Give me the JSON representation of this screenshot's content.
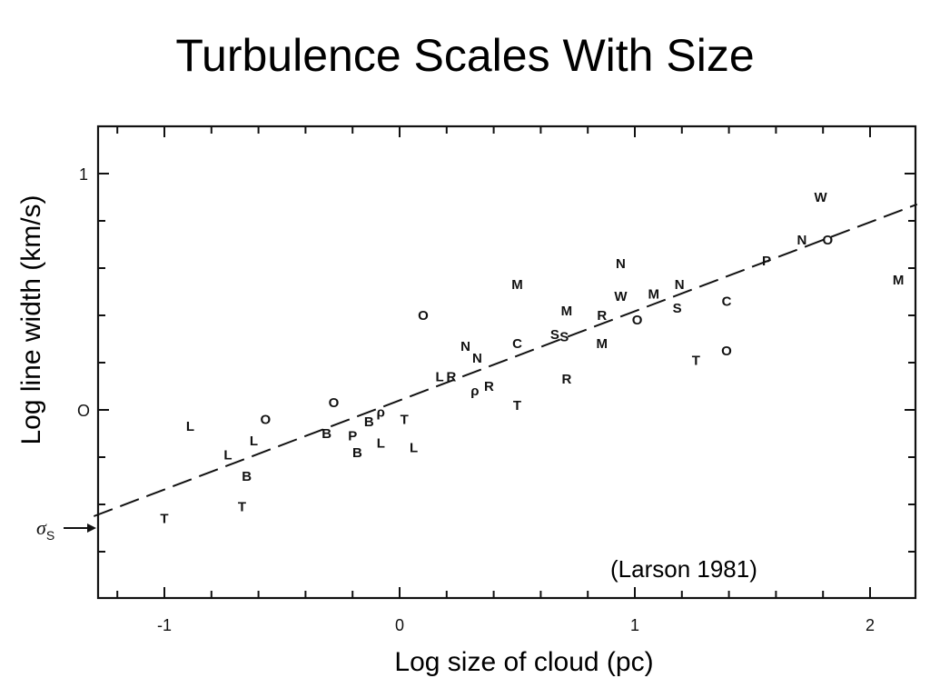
{
  "title": "Turbulence Scales With Size",
  "citation": "(Larson 1981)",
  "sigma_label": "σS",
  "chart_data": {
    "type": "scatter",
    "title": "Turbulence Scales With Size",
    "xlabel": "Log size of cloud (pc)",
    "ylabel": "Log line width (km/s)",
    "xlim": [
      -1.3,
      2.2
    ],
    "ylim": [
      -0.8,
      1.2
    ],
    "x_ticks": [
      -1,
      0,
      1,
      2
    ],
    "x_tick_labels": [
      "-1",
      "0",
      "1",
      "2"
    ],
    "y_ticks": [
      0,
      1
    ],
    "y_tick_labels": [
      "O",
      "1"
    ],
    "grid": false,
    "fit_line": {
      "x": [
        -1.3,
        2.2
      ],
      "y": [
        -0.45,
        0.87
      ],
      "style": "dashed"
    },
    "sigma_marker_y": -0.5,
    "points": [
      {
        "x": -1.0,
        "y": -0.46,
        "label": "T"
      },
      {
        "x": -0.67,
        "y": -0.41,
        "label": "T"
      },
      {
        "x": -0.89,
        "y": -0.07,
        "label": "L"
      },
      {
        "x": -0.73,
        "y": -0.19,
        "label": "L"
      },
      {
        "x": -0.62,
        "y": -0.13,
        "label": "L"
      },
      {
        "x": -0.65,
        "y": -0.28,
        "label": "B"
      },
      {
        "x": -0.57,
        "y": -0.04,
        "label": "O"
      },
      {
        "x": -0.28,
        "y": 0.03,
        "label": "O"
      },
      {
        "x": -0.31,
        "y": -0.1,
        "label": "B"
      },
      {
        "x": -0.2,
        "y": -0.11,
        "label": "P"
      },
      {
        "x": -0.18,
        "y": -0.18,
        "label": "B"
      },
      {
        "x": -0.13,
        "y": -0.05,
        "label": "B"
      },
      {
        "x": -0.08,
        "y": -0.01,
        "label": "ρ"
      },
      {
        "x": -0.08,
        "y": -0.14,
        "label": "L"
      },
      {
        "x": 0.02,
        "y": -0.04,
        "label": "T"
      },
      {
        "x": 0.06,
        "y": -0.16,
        "label": "L"
      },
      {
        "x": 0.1,
        "y": 0.4,
        "label": "O"
      },
      {
        "x": 0.17,
        "y": 0.14,
        "label": "L"
      },
      {
        "x": 0.22,
        "y": 0.14,
        "label": "R"
      },
      {
        "x": 0.28,
        "y": 0.27,
        "label": "N"
      },
      {
        "x": 0.33,
        "y": 0.22,
        "label": "N"
      },
      {
        "x": 0.32,
        "y": 0.08,
        "label": "ρ"
      },
      {
        "x": 0.38,
        "y": 0.1,
        "label": "R"
      },
      {
        "x": 0.5,
        "y": 0.53,
        "label": "M"
      },
      {
        "x": 0.5,
        "y": 0.28,
        "label": "C"
      },
      {
        "x": 0.5,
        "y": 0.02,
        "label": "T"
      },
      {
        "x": 0.66,
        "y": 0.32,
        "label": "S"
      },
      {
        "x": 0.7,
        "y": 0.31,
        "label": "S"
      },
      {
        "x": 0.71,
        "y": 0.42,
        "label": "M"
      },
      {
        "x": 0.71,
        "y": 0.13,
        "label": "R"
      },
      {
        "x": 0.86,
        "y": 0.4,
        "label": "R"
      },
      {
        "x": 0.86,
        "y": 0.28,
        "label": "M"
      },
      {
        "x": 0.94,
        "y": 0.62,
        "label": "N"
      },
      {
        "x": 0.94,
        "y": 0.48,
        "label": "W"
      },
      {
        "x": 1.01,
        "y": 0.38,
        "label": "O"
      },
      {
        "x": 1.08,
        "y": 0.49,
        "label": "M"
      },
      {
        "x": 1.19,
        "y": 0.53,
        "label": "N"
      },
      {
        "x": 1.18,
        "y": 0.43,
        "label": "S"
      },
      {
        "x": 1.26,
        "y": 0.21,
        "label": "T"
      },
      {
        "x": 1.39,
        "y": 0.46,
        "label": "C"
      },
      {
        "x": 1.39,
        "y": 0.25,
        "label": "O"
      },
      {
        "x": 1.56,
        "y": 0.63,
        "label": "P"
      },
      {
        "x": 1.71,
        "y": 0.72,
        "label": "N"
      },
      {
        "x": 1.79,
        "y": 0.9,
        "label": "W"
      },
      {
        "x": 1.82,
        "y": 0.72,
        "label": "O"
      },
      {
        "x": 2.12,
        "y": 0.55,
        "label": "M"
      }
    ]
  }
}
